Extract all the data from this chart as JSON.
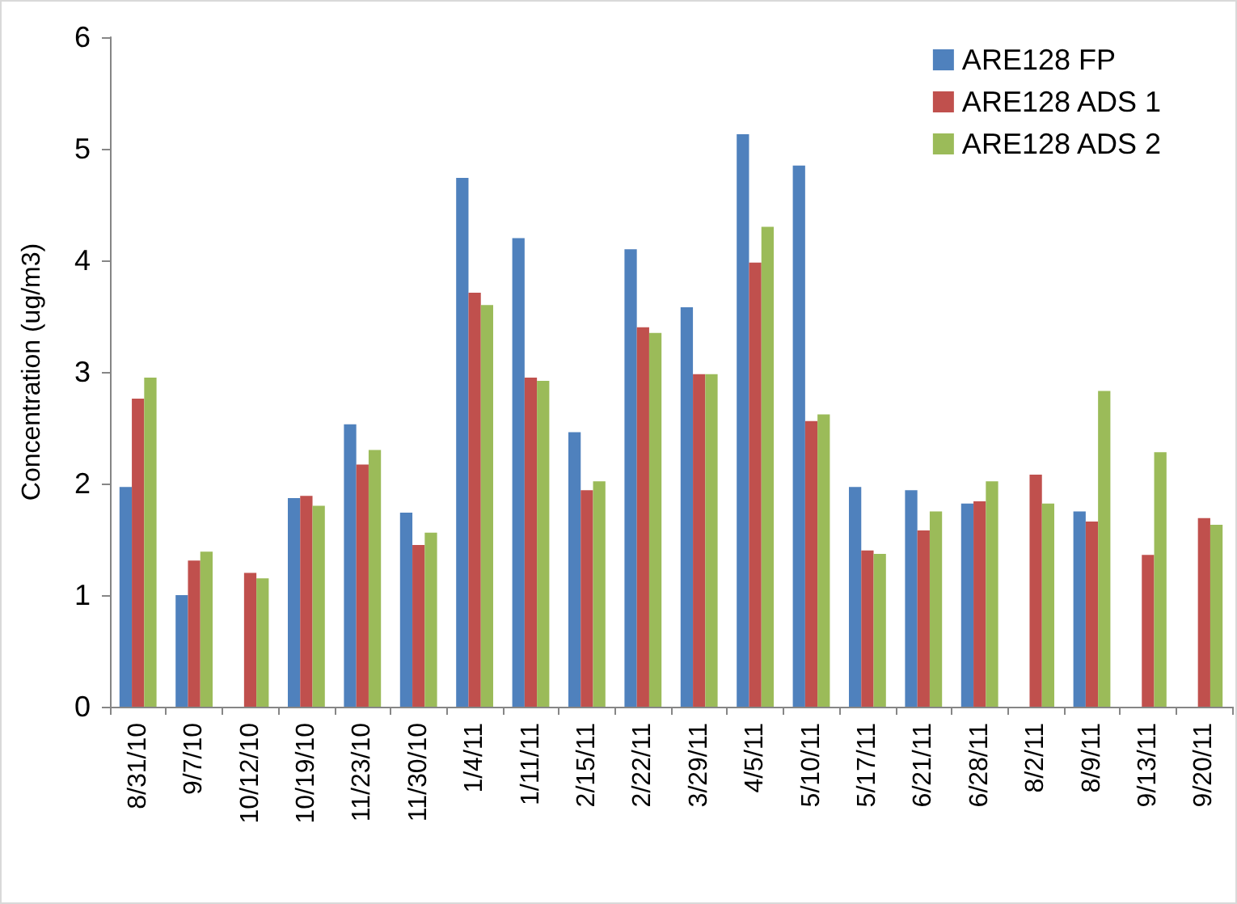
{
  "chart_data": {
    "type": "bar",
    "ylabel": "Concentration (ug/m3)",
    "categories": [
      "8/31/10",
      "9/7/10",
      "10/12/10",
      "10/19/10",
      "11/23/10",
      "11/30/10",
      "1/4/11",
      "1/11/11",
      "2/15/11",
      "2/22/11",
      "3/29/11",
      "4/5/11",
      "5/10/11",
      "5/17/11",
      "6/21/11",
      "6/28/11",
      "8/2/11",
      "8/9/11",
      "9/13/11",
      "9/20/11"
    ],
    "series": [
      {
        "name": "ARE128 FP",
        "color": "#4f81bd",
        "values": [
          1.97,
          1.0,
          null,
          1.87,
          2.53,
          1.74,
          4.74,
          4.2,
          2.46,
          4.1,
          3.58,
          5.13,
          4.85,
          1.97,
          1.94,
          1.82,
          null,
          1.75,
          null,
          null
        ]
      },
      {
        "name": "ARE128 ADS 1",
        "color": "#c0504d",
        "values": [
          2.76,
          1.31,
          1.2,
          1.89,
          2.17,
          1.45,
          3.71,
          2.95,
          1.94,
          3.4,
          2.98,
          3.98,
          2.56,
          1.4,
          1.58,
          1.84,
          2.08,
          1.66,
          1.36,
          1.69
        ]
      },
      {
        "name": "ARE128 ADS 2",
        "color": "#9bbb59",
        "values": [
          2.95,
          1.39,
          1.15,
          1.8,
          2.3,
          1.56,
          3.6,
          2.92,
          2.02,
          3.35,
          2.98,
          4.3,
          2.62,
          1.37,
          1.75,
          2.02,
          1.82,
          2.83,
          2.28,
          1.63
        ]
      }
    ],
    "ylim": [
      0,
      6
    ],
    "yticks": [
      0,
      1,
      2,
      3,
      4,
      5,
      6
    ],
    "grid": false,
    "legend": "top right"
  }
}
